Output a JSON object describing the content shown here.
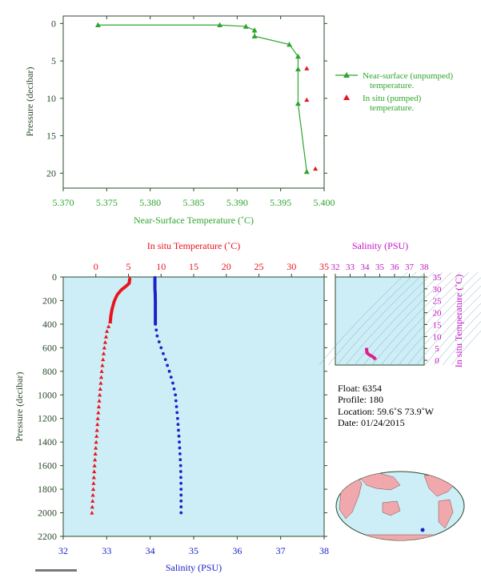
{
  "colors": {
    "green": "#2fa52f",
    "red": "#e8141e",
    "blue": "#1b22c8",
    "magenta": "#c412c4",
    "panel_bg": "#cdeef6",
    "axis_dark": "#2b4a2b"
  },
  "chart_data": [
    {
      "type": "scatter",
      "xlabel": "Near-Surface Temperature (˚C)",
      "ylabel": "Pressure (decibar)",
      "xlim": [
        5.37,
        5.4
      ],
      "ylim": [
        22,
        -1
      ],
      "x_ticks": [
        "5.370",
        "5.375",
        "5.380",
        "5.385",
        "5.390",
        "5.395",
        "5.400"
      ],
      "y_ticks": [
        "0",
        "5",
        "10",
        "15",
        "20"
      ],
      "series": [
        {
          "name": "Near-surface (unpumped) temperature.",
          "points": [
            [
              5.374,
              0.2
            ],
            [
              5.388,
              0.2
            ],
            [
              5.391,
              0.4
            ],
            [
              5.392,
              0.9
            ],
            [
              5.392,
              1.7
            ],
            [
              5.396,
              2.8
            ],
            [
              5.397,
              4.4
            ],
            [
              5.397,
              6.1
            ],
            [
              5.397,
              10.7
            ],
            [
              5.398,
              19.8
            ]
          ]
        },
        {
          "name": "In situ (pumped) temperature.",
          "points": [
            [
              5.398,
              6.0
            ],
            [
              5.398,
              10.2
            ],
            [
              5.399,
              19.4
            ]
          ]
        }
      ],
      "legend_position": "right"
    },
    {
      "type": "scatter",
      "top_xlabel": "In situ Temperature (˚C)",
      "bottom_xlabel": "Salinity (PSU)",
      "ylabel": "Pressure (decibar)",
      "temp_lim": [
        -5,
        35
      ],
      "sal_lim": [
        32,
        38
      ],
      "ylim": [
        2200,
        0
      ],
      "temp_ticks": [
        "0",
        "5",
        "10",
        "15",
        "20",
        "25",
        "30",
        "35"
      ],
      "sal_ticks": [
        "32",
        "33",
        "34",
        "35",
        "36",
        "37",
        "38"
      ],
      "y_ticks": [
        "0",
        "200",
        "400",
        "600",
        "800",
        "1000",
        "1200",
        "1400",
        "1600",
        "1800",
        "2000",
        "2200"
      ],
      "temperature_profile": [
        [
          5.2,
          5
        ],
        [
          5.1,
          50
        ],
        [
          4.5,
          80
        ],
        [
          3.8,
          110
        ],
        [
          3.2,
          150
        ],
        [
          2.8,
          200
        ],
        [
          2.5,
          260
        ],
        [
          2.3,
          320
        ],
        [
          2.2,
          380
        ],
        [
          1.7,
          460
        ],
        [
          1.3,
          600
        ],
        [
          0.9,
          800
        ],
        [
          0.6,
          1000
        ],
        [
          0.3,
          1200
        ],
        [
          0.05,
          1400
        ],
        [
          -0.2,
          1600
        ],
        [
          -0.4,
          1800
        ],
        [
          -0.6,
          2000
        ]
      ],
      "salinity_profile": [
        [
          34.11,
          5
        ],
        [
          34.11,
          100
        ],
        [
          34.12,
          200
        ],
        [
          34.12,
          300
        ],
        [
          34.12,
          400
        ],
        [
          34.16,
          500
        ],
        [
          34.25,
          600
        ],
        [
          34.35,
          700
        ],
        [
          34.44,
          800
        ],
        [
          34.52,
          900
        ],
        [
          34.58,
          1000
        ],
        [
          34.63,
          1200
        ],
        [
          34.67,
          1400
        ],
        [
          34.7,
          1600
        ],
        [
          34.71,
          1800
        ],
        [
          34.71,
          2000
        ]
      ]
    },
    {
      "type": "scatter",
      "top_xlabel": "Salinity (PSU)",
      "right_ylabel": "In situ Temperature (˚C)",
      "sal_lim": [
        32,
        38
      ],
      "temp_lim": [
        -2,
        35
      ],
      "sal_ticks": [
        "32",
        "33",
        "34",
        "35",
        "36",
        "37",
        "38"
      ],
      "temp_ticks": [
        "0",
        "5",
        "10",
        "15",
        "20",
        "25",
        "30",
        "35"
      ],
      "ts_points": [
        [
          34.1,
          5.2
        ],
        [
          34.12,
          4.0
        ],
        [
          34.15,
          3.0
        ],
        [
          34.3,
          2.3
        ],
        [
          34.5,
          1.6
        ],
        [
          34.65,
          0.9
        ],
        [
          34.71,
          0.2
        ]
      ]
    }
  ],
  "legend": {
    "unpumped_line1": "Near-surface (unpumped)",
    "unpumped_line2": "temperature.",
    "pumped_line1": "In situ (pumped)",
    "pumped_line2": "temperature."
  },
  "info": {
    "float": "Float:  6354",
    "profile": "Profile:  180",
    "location": "Location:  59.6˚S  73.9˚W",
    "date": "Date:  01/24/2015"
  }
}
